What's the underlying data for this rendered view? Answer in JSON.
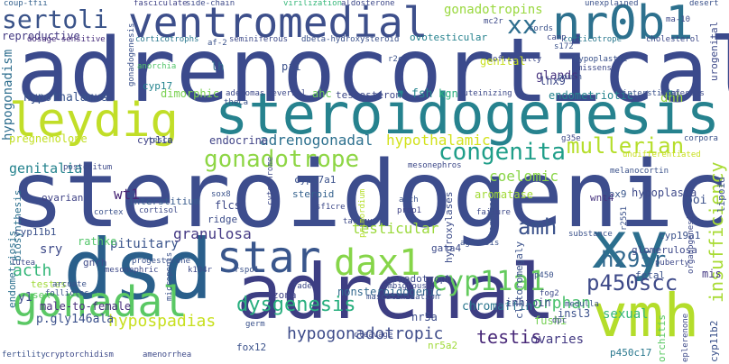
{
  "words": [
    {
      "text": "adrenocortical",
      "color": "#3b4a8c"
    },
    {
      "text": "steroidogenic",
      "color": "#3d4d8d"
    },
    {
      "text": "steroidogenesis",
      "color": "#26828e"
    },
    {
      "text": "adrenal",
      "color": "#3d3e83"
    },
    {
      "text": "dsd",
      "color": "#2a5f8b"
    },
    {
      "text": "ventromedial",
      "color": "#3d4f8b"
    },
    {
      "text": "leydig",
      "color": "#c1de28"
    },
    {
      "text": "gonadal",
      "color": "#5ac864"
    },
    {
      "text": "xy",
      "color": "#2c6f8e"
    },
    {
      "text": "nr0b1",
      "color": "#2d718e"
    },
    {
      "text": "sertoli",
      "color": "#3a5389"
    },
    {
      "text": "vmh",
      "color": "#b4dd2b"
    },
    {
      "text": "star",
      "color": "#39568c"
    },
    {
      "text": "dax1",
      "color": "#86d549"
    },
    {
      "text": "cyp11a1",
      "color": "#65cb5e"
    },
    {
      "text": "congenita",
      "color": "#1f9e89"
    },
    {
      "text": "gonadotrope",
      "color": "#8ed645"
    },
    {
      "text": "mullerian",
      "color": "#b5de2b"
    },
    {
      "text": "p450scc",
      "color": "#3e4a89"
    },
    {
      "text": "h295r",
      "color": "#31688e"
    },
    {
      "text": "amh",
      "color": "#3b528b"
    },
    {
      "text": "xx",
      "color": "#2e6e8e"
    },
    {
      "text": "hypogonadotropic",
      "color": "#3e4c8a"
    },
    {
      "text": "dysgenesis",
      "color": "#29af7f"
    },
    {
      "text": "testis",
      "color": "#482878"
    },
    {
      "text": "hypospadias",
      "color": "#c8e020"
    },
    {
      "text": "insufficiency",
      "color": "#a8db34"
    },
    {
      "text": "gonadotropins",
      "color": "#99d83e"
    },
    {
      "text": "hypogonadism",
      "color": "#2e6e8e"
    },
    {
      "text": "hypothalamic",
      "color": "#d2e21b"
    },
    {
      "text": "testicular",
      "color": "#9bd93c"
    },
    {
      "text": "adrenogonadal",
      "color": "#2d708e"
    },
    {
      "text": "granulosa",
      "color": "#443983"
    },
    {
      "text": "pituitary",
      "color": "#3a548c"
    },
    {
      "text": "nonsteroidogenic",
      "color": "#31688e"
    },
    {
      "text": "chromaffin",
      "color": "#2a768e"
    },
    {
      "text": "orphan",
      "color": "#4ac16d"
    },
    {
      "text": "ovaries",
      "color": "#443a83"
    },
    {
      "text": "genitalia",
      "color": "#25838e"
    },
    {
      "text": "coelomic",
      "color": "#89d548"
    },
    {
      "text": "wt1",
      "color": "#482576"
    },
    {
      "text": "acth",
      "color": "#35b779"
    },
    {
      "text": "sry",
      "color": "#3e4a89"
    },
    {
      "text": "y1",
      "color": "#3e4a89"
    },
    {
      "text": "endocrine",
      "color": "#414487"
    },
    {
      "text": "cyp11a",
      "color": "#414487"
    },
    {
      "text": "fox12",
      "color": "#3b528b"
    },
    {
      "text": "p450c17",
      "color": "#2a788e"
    },
    {
      "text": "male-to-female",
      "color": "#472d7b"
    },
    {
      "text": "p.gly146ala",
      "color": "#3b518b"
    },
    {
      "text": "reproductive",
      "color": "#443a83"
    },
    {
      "text": "sexual",
      "color": "#35b779"
    },
    {
      "text": "orchitis",
      "color": "#5ac864"
    },
    {
      "text": "hypothalamus",
      "color": "#3a548c"
    },
    {
      "text": "pregnenolone",
      "color": "#c2df23"
    },
    {
      "text": "inhibin",
      "color": "#3e4a89"
    },
    {
      "text": "insl3",
      "color": "#3b518b"
    },
    {
      "text": "glands",
      "color": "#46327e"
    },
    {
      "text": "endometriosis",
      "color": "#2d708e"
    },
    {
      "text": "endometriotic",
      "color": "#25848e"
    },
    {
      "text": "testosterone",
      "color": "#3e4989"
    },
    {
      "text": "hydroxylases",
      "color": "#3d4d8a"
    },
    {
      "text": "clitoromegaly",
      "color": "#3b528b"
    },
    {
      "text": "interstitium",
      "color": "#375a8c"
    },
    {
      "text": "steroid",
      "color": "#34618d"
    },
    {
      "text": "ovarian",
      "color": "#414487"
    },
    {
      "text": "rathke",
      "color": "#52c569"
    },
    {
      "text": "biosynthesis",
      "color": "#2d708e"
    },
    {
      "text": "gata4",
      "color": "#3e4c8a"
    },
    {
      "text": "mis",
      "color": "#443983"
    },
    {
      "text": "fetal",
      "color": "#3b528b"
    },
    {
      "text": "glomerulosa",
      "color": "#3e4989"
    },
    {
      "text": "cyp19a1",
      "color": "#3b528b"
    },
    {
      "text": "hypoplasia",
      "color": "#3e4989"
    },
    {
      "text": "wnt4",
      "color": "#46327e"
    },
    {
      "text": "aromatase",
      "color": "#a2da37"
    },
    {
      "text": "dhh",
      "color": "#9bd93c"
    },
    {
      "text": "lhx9",
      "color": "#3e4989"
    },
    {
      "text": "kgn",
      "color": "#29af7f"
    },
    {
      "text": "fsh",
      "color": "#25858e"
    },
    {
      "text": "ahc",
      "color": "#6ccd5a"
    },
    {
      "text": "dimorphic",
      "color": "#7ad151"
    },
    {
      "text": "cyp17",
      "color": "#25848e"
    },
    {
      "text": "lh",
      "color": "#2f6c8e"
    },
    {
      "text": "pii",
      "color": "#3b518b"
    },
    {
      "text": "genital",
      "color": "#c8e020"
    },
    {
      "text": "ovotesticular",
      "color": "#26828e"
    },
    {
      "text": "cyp17a1",
      "color": "#3b528b"
    },
    {
      "text": "flcs",
      "color": "#3e4a89"
    },
    {
      "text": "ridge",
      "color": "#3d4d8a"
    },
    {
      "text": "gnrh",
      "color": "#3e4a89"
    },
    {
      "text": "gonadotroph",
      "color": "#3e4a89"
    },
    {
      "text": "sox9",
      "color": "#39568c"
    },
    {
      "text": "poi",
      "color": "#3b518b"
    },
    {
      "text": "cyp11b1",
      "color": "#3b518b"
    },
    {
      "text": "testes",
      "color": "#a0da39"
    },
    {
      "text": "sex",
      "color": "#5ec962"
    },
    {
      "text": "zona",
      "color": "#414487"
    },
    {
      "text": "nr5a",
      "color": "#3d4d8a"
    },
    {
      "text": "nr5a2",
      "color": "#a0da39"
    },
    {
      "text": "fushi",
      "color": "#75d054"
    },
    {
      "text": "urogenital",
      "color": "#3e4a89"
    },
    {
      "text": "cyp11b2",
      "color": "#3b528b"
    },
    {
      "text": "lipoid",
      "color": "#3b528b"
    },
    {
      "text": "tarazu",
      "color": "#3e4a89"
    },
    {
      "text": "prop1",
      "color": "#414487"
    },
    {
      "text": "ahch",
      "color": "#3b528b"
    },
    {
      "text": "coup-tfii",
      "color": "#34618d"
    },
    {
      "text": "fasciculate",
      "color": "#414487"
    },
    {
      "text": "side-chain",
      "color": "#3e4a89"
    },
    {
      "text": "virilization",
      "color": "#35b779"
    },
    {
      "text": "aldosterone",
      "color": "#3e4989"
    },
    {
      "text": "unexplained",
      "color": "#3b528b"
    },
    {
      "text": "desert",
      "color": "#3b528b"
    },
    {
      "text": "corticotrophs",
      "color": "#2a788e"
    },
    {
      "text": "seminiferous",
      "color": "#3e4a89"
    },
    {
      "text": "dbeta-hydroxysteroid",
      "color": "#3b528b"
    },
    {
      "text": "dosage-sensitive",
      "color": "#472d7b"
    },
    {
      "text": "corticotrope",
      "color": "#2a788e"
    },
    {
      "text": "cholesterol",
      "color": "#3e4a89"
    },
    {
      "text": "hypoplastic",
      "color": "#3b528b"
    },
    {
      "text": "missense",
      "color": "#3e4a89"
    },
    {
      "text": "pouch",
      "color": "#3b528b"
    },
    {
      "text": "anorchia",
      "color": "#52c569"
    },
    {
      "text": "adenomas",
      "color": "#3e4a89"
    },
    {
      "text": "reversal",
      "color": "#3e4a89"
    },
    {
      "text": "theca",
      "color": "#3b528b"
    },
    {
      "text": "luteinizing",
      "color": "#3e4a89"
    },
    {
      "text": "tesco",
      "color": "#3b528b"
    },
    {
      "text": "mesonephros",
      "color": "#3e4a89"
    },
    {
      "text": "melanocortin",
      "color": "#3b528b"
    },
    {
      "text": "undifferentiated",
      "color": "#c8e020"
    },
    {
      "text": "corpora",
      "color": "#3b528b"
    },
    {
      "text": "g35e",
      "color": "#3e4a89"
    },
    {
      "text": "postcoitum",
      "color": "#3e4a89"
    },
    {
      "text": "cortex",
      "color": "#3b528b"
    },
    {
      "text": "cortisol",
      "color": "#3e4a89"
    },
    {
      "text": "sox8",
      "color": "#3b528b"
    },
    {
      "text": "sf1cre",
      "color": "#3e4a89"
    },
    {
      "text": "primordium",
      "color": "#b5de2b"
    },
    {
      "text": "failure",
      "color": "#3e4a89"
    },
    {
      "text": "substance",
      "color": "#3b528b"
    },
    {
      "text": "ambiguous",
      "color": "#3e4a89"
    },
    {
      "text": "agenesis",
      "color": "#3b528b"
    },
    {
      "text": "puberty",
      "color": "#3e4a89"
    },
    {
      "text": "follicles",
      "color": "#3b528b"
    },
    {
      "text": "mesonephric",
      "color": "#3e4a89"
    },
    {
      "text": "micropenis",
      "color": "#3b528b"
    },
    {
      "text": "k194r",
      "color": "#3e4a89"
    },
    {
      "text": "rspo1",
      "color": "#3b528b"
    },
    {
      "text": "fade",
      "color": "#3e4a89"
    },
    {
      "text": "masculinization",
      "color": "#3b528b"
    },
    {
      "text": "cleavage",
      "color": "#3e4a89"
    },
    {
      "text": "germ",
      "color": "#3b528b"
    },
    {
      "text": "fog2",
      "color": "#3e4a89"
    },
    {
      "text": "medulla",
      "color": "#3b528b"
    },
    {
      "text": "amenorrhea",
      "color": "#3e4a89"
    },
    {
      "text": "fertility",
      "color": "#3b528b"
    },
    {
      "text": "cryptorchidism",
      "color": "#3e4a89"
    },
    {
      "text": "progesterone",
      "color": "#3b528b"
    },
    {
      "text": "lutea",
      "color": "#3e4a89"
    },
    {
      "text": "arcuate",
      "color": "#3b528b"
    },
    {
      "text": "cytochrome",
      "color": "#3e4a89"
    },
    {
      "text": "hormones",
      "color": "#3b528b"
    },
    {
      "text": "organogenesis",
      "color": "#3e4a89"
    },
    {
      "text": "r2551",
      "color": "#3b528b"
    },
    {
      "text": "dpc",
      "color": "#3e4a89"
    },
    {
      "text": "p450",
      "color": "#3b528b"
    },
    {
      "text": "eplerenone",
      "color": "#3e4a89"
    },
    {
      "text": "r2c",
      "color": "#3b528b"
    },
    {
      "text": "mc2r",
      "color": "#3e4a89"
    },
    {
      "text": "cords",
      "color": "#3b528b"
    },
    {
      "text": "camp",
      "color": "#3e4a89"
    },
    {
      "text": "s172",
      "color": "#3b528b"
    },
    {
      "text": "ma-10",
      "color": "#3e4a89"
    },
    {
      "text": "af-2",
      "color": "#3b528b"
    },
    {
      "text": "officially",
      "color": "#3e4a89"
    },
    {
      "text": "interstitial",
      "color": "#3b528b"
    },
    {
      "text": "ovotestes",
      "color": "#3e4a89"
    },
    {
      "text": "gonadogenesis",
      "color": "#3b528b"
    }
  ]
}
